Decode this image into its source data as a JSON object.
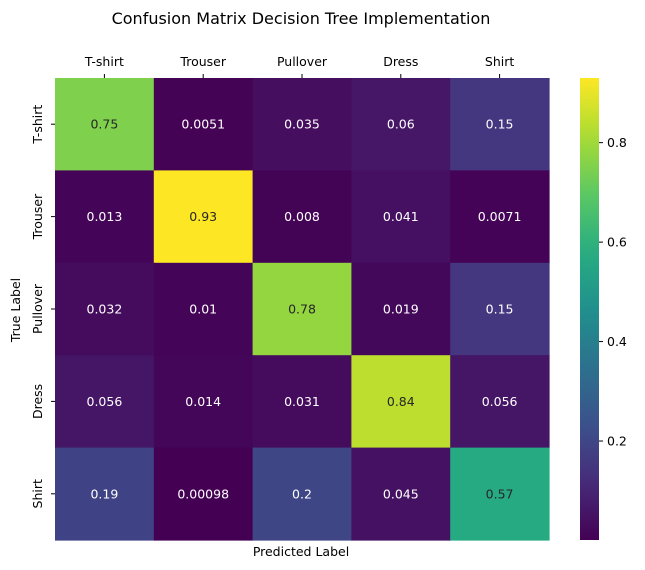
{
  "chart_data": {
    "type": "heatmap",
    "title": "Confusion Matrix Decision Tree Implementation",
    "xlabel": "Predicted Label",
    "ylabel": "True Label",
    "x_categories": [
      "T-shirt",
      "Trouser",
      "Pullover",
      "Dress",
      "Shirt"
    ],
    "y_categories": [
      "T-shirt",
      "Trouser",
      "Pullover",
      "Dress",
      "Shirt"
    ],
    "x_tick_position": "top",
    "values": [
      [
        0.75,
        0.0051,
        0.035,
        0.06,
        0.15
      ],
      [
        0.013,
        0.93,
        0.008,
        0.041,
        0.0071
      ],
      [
        0.032,
        0.01,
        0.78,
        0.019,
        0.15
      ],
      [
        0.056,
        0.014,
        0.031,
        0.84,
        0.056
      ],
      [
        0.19,
        0.00098,
        0.2,
        0.045,
        0.57
      ]
    ],
    "cell_labels": [
      [
        "0.75",
        "0.0051",
        "0.035",
        "0.06",
        "0.15"
      ],
      [
        "0.013",
        "0.93",
        "0.008",
        "0.041",
        "0.0071"
      ],
      [
        "0.032",
        "0.01",
        "0.78",
        "0.019",
        "0.15"
      ],
      [
        "0.056",
        "0.014",
        "0.031",
        "0.84",
        "0.056"
      ],
      [
        "0.19",
        "0.00098",
        "0.2",
        "0.045",
        "0.57"
      ]
    ],
    "colormap": "viridis",
    "color_range": [
      0.00098,
      0.93
    ],
    "colorbar": {
      "ticks": [
        0.2,
        0.4,
        0.6,
        0.8
      ],
      "tick_labels": [
        "0.2",
        "0.4",
        "0.6",
        "0.8"
      ]
    },
    "text_colors": {
      "light": "#ffffff",
      "dark": "#262626"
    }
  }
}
